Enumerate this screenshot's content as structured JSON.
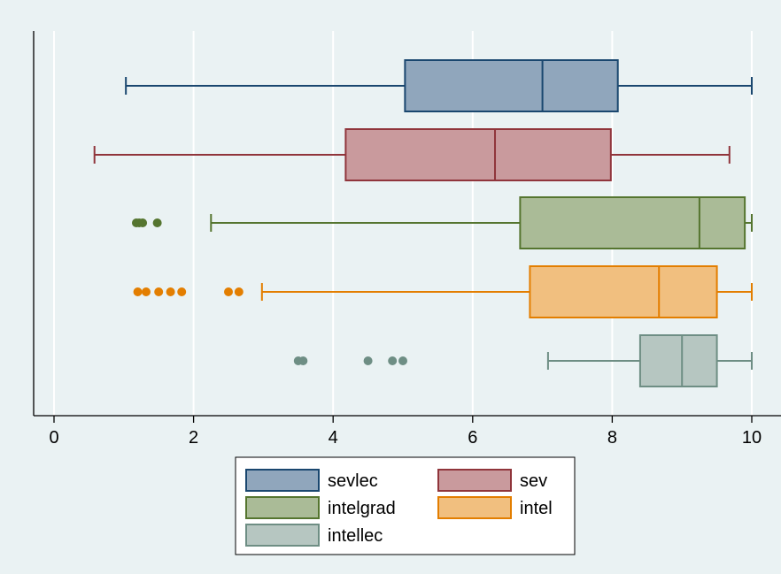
{
  "chart_data": {
    "type": "box",
    "orientation": "horizontal",
    "xlim": [
      0,
      10
    ],
    "xticks": [
      0,
      2,
      4,
      6,
      8,
      10
    ],
    "grid": true,
    "legend_position": "bottom",
    "series": [
      {
        "name": "sevlec",
        "color": "#1a476f",
        "fill": "#90a6bc",
        "min": 1.03,
        "q1": 5.03,
        "median": 7.0,
        "q3": 8.08,
        "max": 10.0,
        "outliers": []
      },
      {
        "name": "sev",
        "color": "#90353b",
        "fill": "#c99a9d",
        "min": 0.58,
        "q1": 4.18,
        "median": 6.32,
        "q3": 7.98,
        "max": 9.68,
        "outliers": []
      },
      {
        "name": "intelgrad",
        "color": "#55752f",
        "fill": "#aabb97",
        "min": 2.25,
        "q1": 6.68,
        "median": 9.25,
        "q3": 9.9,
        "max": 10.0,
        "outliers": [
          1.18,
          1.22,
          1.27,
          1.48
        ]
      },
      {
        "name": "intel",
        "color": "#e37e00",
        "fill": "#f1bf7f",
        "min": 2.98,
        "q1": 6.82,
        "median": 8.67,
        "q3": 9.5,
        "max": 10.0,
        "outliers": [
          1.2,
          1.32,
          1.5,
          1.67,
          1.83,
          2.5,
          2.65
        ]
      },
      {
        "name": "intellec",
        "color": "#6e8e84",
        "fill": "#b6c6c1",
        "min": 7.08,
        "q1": 8.4,
        "median": 9.0,
        "q3": 9.5,
        "max": 10.0,
        "outliers": [
          3.5,
          3.57,
          4.5,
          4.85,
          5.0
        ]
      }
    ],
    "legend": {
      "columns": [
        [
          "sevlec",
          "intelgrad",
          "intellec"
        ],
        [
          "sev",
          "intel"
        ]
      ]
    }
  }
}
